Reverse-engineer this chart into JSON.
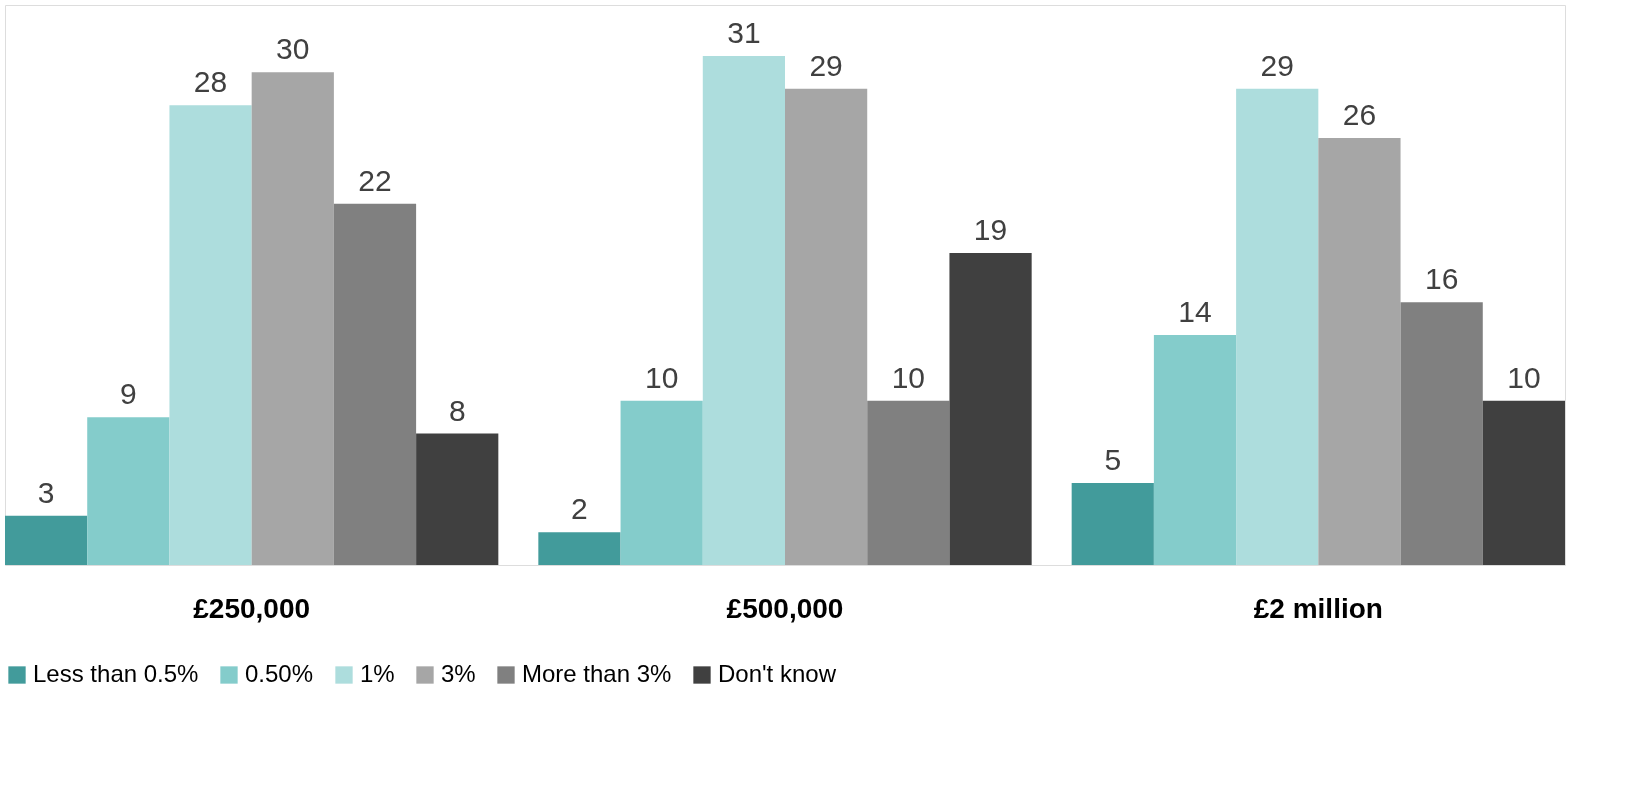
{
  "chart_data": {
    "type": "bar",
    "categories": [
      "£250,000",
      "£500,000",
      "£2 million"
    ],
    "series": [
      {
        "name": "Less than 0.5%",
        "color": "#429b9b",
        "values": [
          3,
          2,
          5
        ]
      },
      {
        "name": "0.50%",
        "color": "#84cccb",
        "values": [
          9,
          10,
          14
        ]
      },
      {
        "name": "1%",
        "color": "#addddd",
        "values": [
          28,
          31,
          29
        ]
      },
      {
        "name": "3%",
        "color": "#a6a6a6",
        "values": [
          30,
          29,
          26
        ]
      },
      {
        "name": "More than 3%",
        "color": "#808080",
        "values": [
          22,
          10,
          16
        ]
      },
      {
        "name": "Don't know",
        "color": "#404040",
        "values": [
          8,
          19,
          10
        ]
      }
    ],
    "data_labels": true,
    "legend": "bottom",
    "grid": false,
    "tick_labels": "x"
  }
}
